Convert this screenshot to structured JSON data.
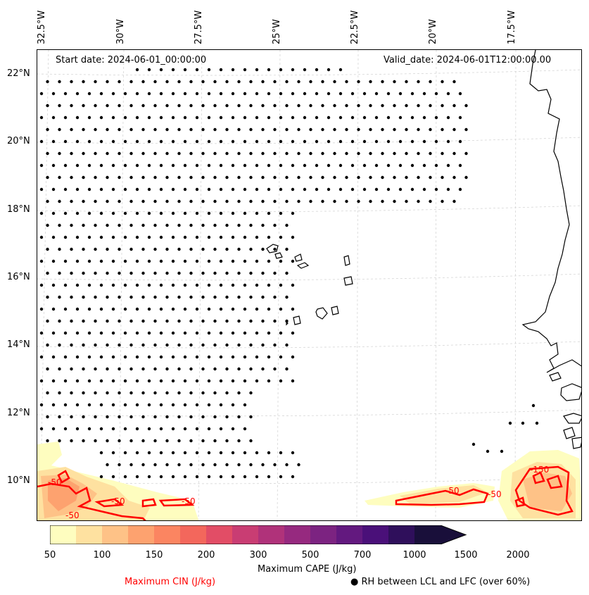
{
  "map": {
    "start_date_label": "Start date: 2024-06-01_00:00:00",
    "valid_date_label": "Valid_date: 2024-06-01T12:00:00.00",
    "lon_labels": [
      "32.5°W",
      "30°W",
      "27.5°W",
      "25°W",
      "22.5°W",
      "20°W",
      "17.5°W"
    ],
    "lat_labels": [
      "22°N",
      "20°N",
      "18°N",
      "16°N",
      "14°N",
      "12°N",
      "10°N"
    ],
    "extent": {
      "lon_min": -32.5,
      "lon_max": -15.3,
      "lat_min": 8.8,
      "lat_max": 22.8
    },
    "cin_contour_labels": [
      "-50",
      "-50",
      "-50",
      "-50",
      "-150",
      "-50",
      "-50"
    ]
  },
  "colorbar": {
    "label": "Maximum CAPE (J/kg)",
    "ticks": [
      "50",
      "100",
      "150",
      "200",
      "300",
      "500",
      "700",
      "1000",
      "1500",
      "2000"
    ],
    "colors": [
      "#fefdbf",
      "#fee1a0",
      "#fec287",
      "#fda26f",
      "#fb8561",
      "#f3675c",
      "#e24d66",
      "#c93d73",
      "#b0327a",
      "#96297f",
      "#7c2381",
      "#63197f",
      "#4a1079",
      "#2f0f5b",
      "#190f3a"
    ],
    "extend": "max"
  },
  "legend": {
    "cin_label": "Maximum CIN (J/kg)",
    "cin_color": "#ff0000",
    "rh_label": "● RH between LCL and LFC (over 60%)"
  }
}
